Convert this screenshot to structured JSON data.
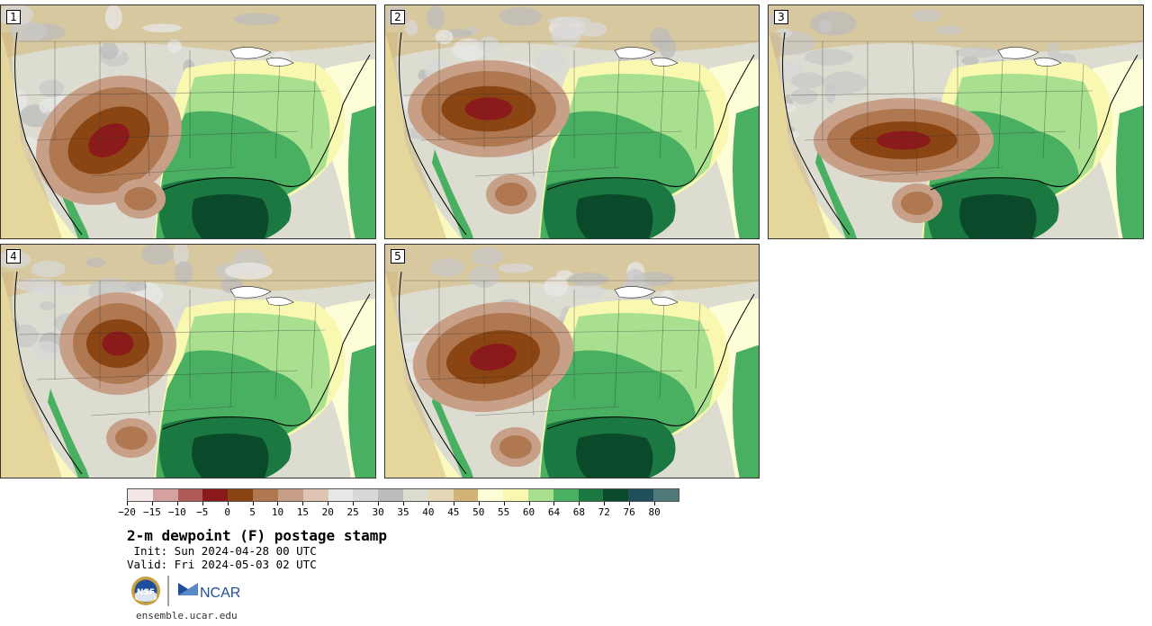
{
  "stamps": [
    {
      "label": "1"
    },
    {
      "label": "2"
    },
    {
      "label": "3"
    },
    {
      "label": "4"
    },
    {
      "label": "5"
    }
  ],
  "colorbar": {
    "colors": [
      "#f3e6e6",
      "#d4a0a0",
      "#b05a5a",
      "#8b1a1a",
      "#8b4513",
      "#b07850",
      "#c8a088",
      "#e0c4b4",
      "#e8e8e8",
      "#d8d8d8",
      "#bcbcbc",
      "#dcdcd0",
      "#e4d8b8",
      "#d2b478",
      "#fdfdd8",
      "#f8f8b0",
      "#a8e090",
      "#48b060",
      "#1a7840",
      "#0a4a2a",
      "#204e5a",
      "#507878"
    ],
    "tick_labels": [
      "−20",
      "−15",
      "−10",
      "−5",
      "0",
      "5",
      "10",
      "15",
      "20",
      "25",
      "30",
      "35",
      "40",
      "45",
      "50",
      "55",
      "60",
      "64",
      "68",
      "72",
      "76",
      "80"
    ]
  },
  "title": "2-m dewpoint (F) postage stamp",
  "init_line": " Init: Sun 2024-04-28 00 UTC",
  "valid_line": "Valid: Fri 2024-05-03 02 UTC",
  "logo_text": "NCAR",
  "nsf_text": "NSF",
  "site": "ensemble.ucar.edu"
}
